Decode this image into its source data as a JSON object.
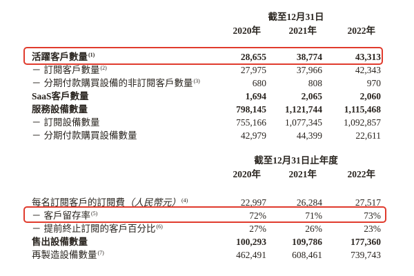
{
  "colors": {
    "highlight_border": "#e03a2c",
    "text": "#29241f",
    "background": "#ffffff"
  },
  "dash": "－",
  "section1": {
    "period_header": "截至12月31日",
    "years": [
      "2020年",
      "2021年",
      "2022年"
    ],
    "rows": [
      {
        "label": "活躍客戶數量",
        "footnote": "(1)",
        "values": [
          "28,655",
          "38,774",
          "43,313"
        ]
      },
      {
        "label": "訂閱客戶數量",
        "footnote": "(2)",
        "values": [
          "27,975",
          "37,966",
          "42,343"
        ]
      },
      {
        "label": "分期付款購買設備的非訂閱客戶數量",
        "footnote": "(3)",
        "values": [
          "680",
          "808",
          "970"
        ]
      },
      {
        "label": "SaaS客戶數量",
        "footnote": "",
        "values": [
          "1,694",
          "2,065",
          "2,060"
        ]
      },
      {
        "label": "服務設備數量",
        "footnote": "",
        "values": [
          "798,145",
          "1,121,744",
          "1,115,468"
        ]
      },
      {
        "label": "訂閱設備數量",
        "footnote": "",
        "values": [
          "755,166",
          "1,077,345",
          "1,092,857"
        ]
      },
      {
        "label": "分期付款購買設備數量",
        "footnote": "",
        "values": [
          "42,979",
          "44,399",
          "22,611"
        ]
      }
    ]
  },
  "section2": {
    "period_header": "截至12月31日止年度",
    "years": [
      "2020年",
      "2021年",
      "2022年"
    ],
    "rows": [
      {
        "label": "每名訂閱客戶的訂閱費",
        "label_italic": "（人民幣元）",
        "footnote": "(4)",
        "values": [
          "22,997",
          "26,284",
          "27,517"
        ]
      },
      {
        "label": "客戶留存率",
        "footnote": "(5)",
        "values": [
          "72%",
          "71%",
          "73%"
        ]
      },
      {
        "label": "提前終止訂閱的客戶百分比",
        "footnote": "(6)",
        "values": [
          "27%",
          "26%",
          "23%"
        ]
      },
      {
        "label": "售出設備數量",
        "footnote": "",
        "values": [
          "100,293",
          "109,786",
          "177,360"
        ]
      },
      {
        "label": "再製造設備數量",
        "footnote": "(7)",
        "values": [
          "462,491",
          "608,461",
          "739,743"
        ]
      }
    ]
  }
}
